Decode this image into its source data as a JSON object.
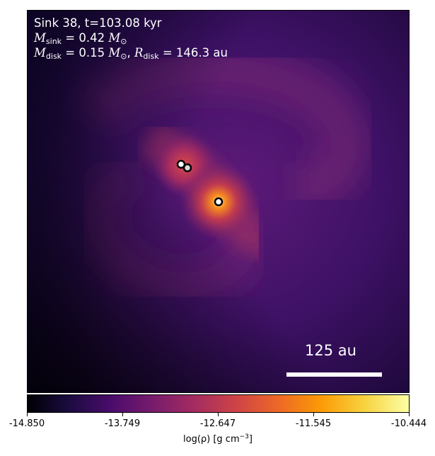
{
  "annotation": {
    "line1": "Sink 38, t=103.08 kyr",
    "msink_symbol": "M",
    "msink_sub": "sink",
    "msink_value": "= 0.42",
    "msink_unit": "M",
    "msink_unit_sub": "⊙",
    "mdisk_symbol": "M",
    "mdisk_sub": "disk",
    "mdisk_value": "= 0.15",
    "mdisk_unit": "M",
    "mdisk_unit_sub": "⊙",
    "rdisk_symbol": "R",
    "rdisk_sub": "disk",
    "rdisk_value": "= 146.3 au"
  },
  "scale_bar": {
    "label": "125 au"
  },
  "colorbar": {
    "ticks": [
      "-14.850",
      "-13.749",
      "-12.647",
      "-11.545",
      "-10.444"
    ],
    "label_main": "log(ρ) [g cm",
    "label_exp": "−3",
    "label_close": "]",
    "colormap": "inferno"
  },
  "sinks": [
    {
      "name": "sink-1"
    },
    {
      "name": "sink-2"
    },
    {
      "name": "sink-3"
    }
  ]
}
